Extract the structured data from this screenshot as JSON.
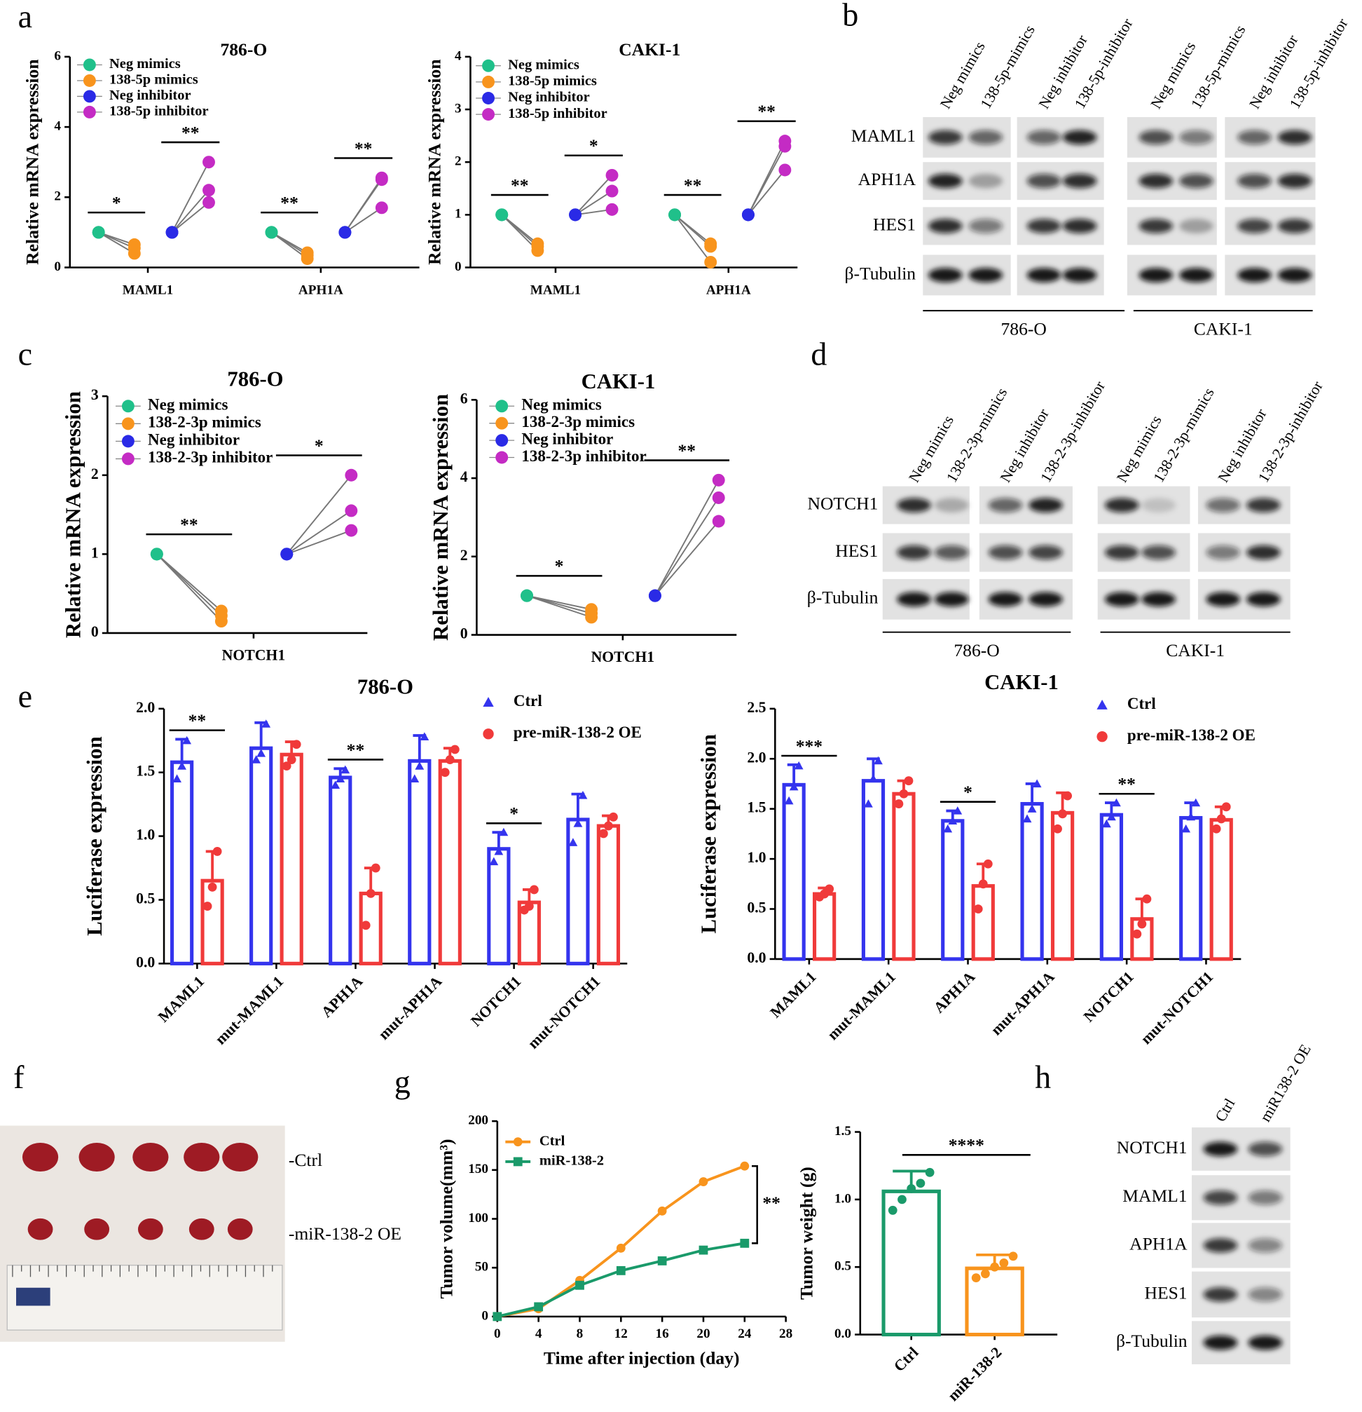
{
  "panel_letters": [
    "a",
    "b",
    "c",
    "d",
    "e",
    "f",
    "g",
    "h"
  ],
  "chart_data": [
    {
      "type": "paired",
      "title": "786-O",
      "ylabel": "Relative mRNA expression",
      "categories": [
        "MAML1",
        "APH1A"
      ],
      "series": [
        {
          "name": "Neg mimics",
          "color": "#20c08a",
          "values": [
            [
              1,
              1,
              1
            ],
            [
              1,
              1,
              1
            ]
          ]
        },
        {
          "name": "138-5p mimics",
          "color": "#f8941d",
          "values": [
            [
              0.4,
              0.55,
              0.65
            ],
            [
              0.25,
              0.35,
              0.42
            ]
          ]
        },
        {
          "name": "Neg inhibitor",
          "color": "#2a2ae6",
          "values": [
            [
              1,
              1,
              1
            ],
            [
              1,
              1,
              1
            ]
          ]
        },
        {
          "name": "138-5p inhibitor",
          "color": "#c42bc4",
          "values": [
            [
              1.85,
              2.2,
              3.0
            ],
            [
              1.7,
              2.5,
              2.55
            ]
          ]
        }
      ],
      "significance": [
        [
          "*",
          "**"
        ],
        [
          "**",
          "**"
        ]
      ],
      "ylim": [
        0,
        6
      ],
      "yticks": [
        0,
        2,
        4,
        6
      ]
    },
    {
      "type": "paired",
      "title": "CAKI-1",
      "ylabel": "Relative mRNA expression",
      "categories": [
        "MAML1",
        "APH1A"
      ],
      "series": [
        {
          "name": "Neg mimics",
          "color": "#20c08a",
          "values": [
            [
              1,
              1,
              1
            ],
            [
              1,
              1,
              1
            ]
          ]
        },
        {
          "name": "138-5p mimics",
          "color": "#f8941d",
          "values": [
            [
              0.32,
              0.4,
              0.45
            ],
            [
              0.1,
              0.4,
              0.45
            ]
          ]
        },
        {
          "name": "Neg inhibitor",
          "color": "#2a2ae6",
          "values": [
            [
              1,
              1,
              1
            ],
            [
              1,
              1,
              1
            ]
          ]
        },
        {
          "name": "138-5p inhibitor",
          "color": "#c42bc4",
          "values": [
            [
              1.1,
              1.45,
              1.75
            ],
            [
              1.85,
              2.3,
              2.4
            ]
          ]
        }
      ],
      "significance": [
        [
          "**",
          "*"
        ],
        [
          "**",
          "**"
        ]
      ],
      "ylim": [
        0,
        4
      ],
      "yticks": [
        0,
        1,
        2,
        3,
        4
      ]
    },
    {
      "type": "paired",
      "title": "786-O",
      "ylabel": "Relative mRNA expression",
      "categories": [
        "NOTCH1"
      ],
      "series": [
        {
          "name": "Neg mimics",
          "color": "#20c08a",
          "values": [
            [
              1,
              1,
              1
            ]
          ]
        },
        {
          "name": "138-2-3p mimics",
          "color": "#f8941d",
          "values": [
            [
              0.15,
              0.22,
              0.28
            ]
          ]
        },
        {
          "name": "Neg inhibitor",
          "color": "#2a2ae6",
          "values": [
            [
              1,
              1,
              1
            ]
          ]
        },
        {
          "name": "138-2-3p inhibitor",
          "color": "#c42bc4",
          "values": [
            [
              1.3,
              1.55,
              2.0
            ]
          ]
        }
      ],
      "significance": [
        [
          "**",
          "*"
        ]
      ],
      "ylim": [
        0,
        3
      ],
      "yticks": [
        0,
        1,
        2,
        3
      ]
    },
    {
      "type": "paired",
      "title": "CAKI-1",
      "ylabel": "Relative mRNA expression",
      "categories": [
        "NOTCH1"
      ],
      "series": [
        {
          "name": "Neg mimics",
          "color": "#20c08a",
          "values": [
            [
              1,
              1,
              1
            ]
          ]
        },
        {
          "name": "138-2-3p mimics",
          "color": "#f8941d",
          "values": [
            [
              0.45,
              0.55,
              0.65
            ]
          ]
        },
        {
          "name": "Neg inhibitor",
          "color": "#2a2ae6",
          "values": [
            [
              1,
              1,
              1
            ]
          ]
        },
        {
          "name": "138-2-3p inhibitor",
          "color": "#c42bc4",
          "values": [
            [
              2.9,
              3.5,
              3.95
            ]
          ]
        }
      ],
      "significance": [
        [
          "*",
          "**"
        ]
      ],
      "ylim": [
        0,
        6
      ],
      "yticks": [
        0,
        2,
        4,
        6
      ]
    },
    {
      "type": "bar",
      "title": "786-O",
      "ylabel": "Luciferase expression",
      "categories": [
        "MAML1",
        "mut-MAML1",
        "APH1A",
        "mut-APH1A",
        "NOTCH1",
        "mut-NOTCH1"
      ],
      "series": [
        {
          "name": "Ctrl",
          "color": "#3434ee",
          "marker": "triangle",
          "values": [
            1.58,
            1.69,
            1.46,
            1.59,
            0.9,
            1.13
          ],
          "errors": [
            0.18,
            0.2,
            0.07,
            0.2,
            0.13,
            0.2
          ],
          "points": [
            [
              1.45,
              1.55,
              1.75
            ],
            [
              1.6,
              1.65,
              1.88
            ],
            [
              1.4,
              1.45,
              1.52
            ],
            [
              1.45,
              1.55,
              1.78
            ],
            [
              0.8,
              0.88,
              1.03
            ],
            [
              0.95,
              1.1,
              1.32
            ]
          ]
        },
        {
          "name": "pre-miR-138-2 OE",
          "color": "#f03a3a",
          "marker": "circle",
          "values": [
            0.65,
            1.64,
            0.55,
            1.59,
            0.48,
            1.08
          ],
          "errors": [
            0.23,
            0.1,
            0.2,
            0.1,
            0.1,
            0.08
          ],
          "points": [
            [
              0.45,
              0.6,
              0.88
            ],
            [
              1.55,
              1.6,
              1.72
            ],
            [
              0.3,
              0.55,
              0.75
            ],
            [
              1.5,
              1.6,
              1.68
            ],
            [
              0.42,
              0.45,
              0.58
            ],
            [
              1.02,
              1.08,
              1.15
            ]
          ]
        }
      ],
      "significance": [
        "**",
        null,
        "**",
        null,
        "*",
        null
      ],
      "ylim": [
        0,
        2
      ],
      "yticks": [
        {
          "value": 0,
          "label": "0.0"
        },
        0.5,
        {
          "value": 1,
          "label": "1.0"
        },
        1.5,
        {
          "value": 2,
          "label": "2.0"
        }
      ]
    },
    {
      "type": "bar",
      "title": "CAKI-1",
      "ylabel": "Luciferase expression",
      "categories": [
        "MAML1",
        "mut-MAML1",
        "APH1A",
        "mut-APH1A",
        "NOTCH1",
        "mut-NOTCH1"
      ],
      "series": [
        {
          "name": "Ctrl",
          "color": "#3434ee",
          "marker": "triangle",
          "values": [
            1.74,
            1.78,
            1.38,
            1.55,
            1.44,
            1.41
          ],
          "errors": [
            0.2,
            0.22,
            0.1,
            0.2,
            0.12,
            0.15
          ],
          "points": [
            [
              1.58,
              1.72,
              1.93
            ],
            [
              1.55,
              1.8,
              1.98
            ],
            [
              1.3,
              1.38,
              1.48
            ],
            [
              1.4,
              1.5,
              1.75
            ],
            [
              1.35,
              1.42,
              1.56
            ],
            [
              1.3,
              1.42,
              1.56
            ]
          ]
        },
        {
          "name": "pre-miR-138-2 OE",
          "color": "#f03a3a",
          "marker": "circle",
          "values": [
            0.65,
            1.65,
            0.73,
            1.46,
            0.4,
            1.39
          ],
          "errors": [
            0.06,
            0.13,
            0.22,
            0.2,
            0.2,
            0.13
          ],
          "points": [
            [
              0.62,
              0.65,
              0.7
            ],
            [
              1.55,
              1.65,
              1.78
            ],
            [
              0.5,
              0.75,
              0.95
            ],
            [
              1.3,
              1.45,
              1.63
            ],
            [
              0.25,
              0.35,
              0.6
            ],
            [
              1.3,
              1.4,
              1.52
            ]
          ]
        }
      ],
      "significance": [
        "***",
        null,
        "*",
        null,
        "**",
        null
      ],
      "ylim": [
        0,
        2.5
      ],
      "yticks": [
        {
          "value": 0,
          "label": "0.0"
        },
        0.5,
        {
          "value": 1,
          "label": "1.0"
        },
        1.5,
        {
          "value": 2,
          "label": "2.0"
        },
        2.5
      ]
    },
    {
      "type": "line",
      "xlabel": "Time after injection (day)",
      "ylabel": "Tumor volume(mm³)",
      "x": [
        0,
        4,
        8,
        12,
        16,
        20,
        24
      ],
      "series": [
        {
          "name": "Ctrl",
          "color": "#f8941d",
          "marker": "circle",
          "values": [
            0,
            8,
            37,
            70,
            108,
            138,
            154
          ]
        },
        {
          "name": "miR-138-2",
          "color": "#1a9a6a",
          "marker": "square",
          "values": [
            0,
            10,
            32,
            47,
            57,
            68,
            75
          ]
        }
      ],
      "annotation": "**",
      "xlim": [
        0,
        28
      ],
      "xticks": [
        0,
        4,
        8,
        12,
        16,
        20,
        24,
        28
      ],
      "ylim": [
        0,
        200
      ],
      "yticks": [
        0,
        50,
        100,
        150,
        200
      ]
    },
    {
      "type": "bar",
      "ylabel": "Tumor weight (g)",
      "categories": [
        "Ctrl",
        "miR-138-2"
      ],
      "series": [
        {
          "colors": [
            "#1a9a6a",
            "#f8941d"
          ],
          "marker": "circle",
          "values": [
            1.06,
            0.49
          ],
          "errors": [
            0.15,
            0.1
          ],
          "points": [
            [
              0.92,
              1.0,
              1.08,
              1.12,
              1.2
            ],
            [
              0.42,
              0.45,
              0.5,
              0.53,
              0.58
            ]
          ]
        }
      ],
      "comparison": "****",
      "ylim": [
        0,
        1.5
      ],
      "yticks": [
        {
          "value": 0,
          "label": "0.0"
        },
        0.5,
        {
          "value": 1,
          "label": "1.0"
        },
        1.5
      ]
    }
  ],
  "blots": [
    {
      "columns": [
        "Neg mimics",
        "138-5p-mimics",
        "Neg inhibitor",
        "138-5p-inhibitor",
        "Neg mimics",
        "138-5p-mimics",
        "Neg inhibitor",
        "138-5p-inhibitor"
      ],
      "rows": [
        "MAML1",
        "APH1A",
        "HES1",
        "β-Tubulin"
      ],
      "groups": [
        "786-O",
        "CAKI-1"
      ]
    },
    {
      "columns": [
        "Neg mimics",
        "138-2-3p-mimics",
        "Neg inhibitor",
        "138-2-3p-inhibitor",
        "Neg mimics",
        "138-2-3p-mimics",
        "Neg inhibitor",
        "138-2-3p-inhibitor"
      ],
      "rows": [
        "NOTCH1",
        "HES1",
        "β-Tubulin"
      ],
      "groups": [
        "786-O",
        "CAKI-1"
      ]
    },
    {
      "columns": [
        "Ctrl",
        "miR138-2 OE"
      ],
      "rows": [
        "NOTCH1",
        "MAML1",
        "APH1A",
        "HES1",
        "β-Tubulin"
      ]
    }
  ],
  "photo": {
    "labels": [
      "-Ctrl",
      "-miR-138-2 OE"
    ]
  }
}
